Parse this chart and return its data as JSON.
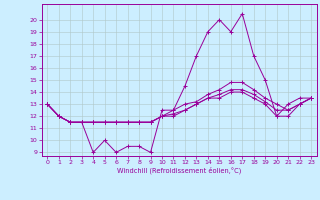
{
  "x": [
    0,
    1,
    2,
    3,
    4,
    5,
    6,
    7,
    8,
    9,
    10,
    11,
    12,
    13,
    14,
    15,
    16,
    17,
    18,
    19,
    20,
    21,
    22,
    23
  ],
  "line1": [
    13,
    12,
    11.5,
    11.5,
    9,
    10,
    9,
    9.5,
    9.5,
    9,
    12.5,
    12.5,
    14.5,
    17,
    19,
    20,
    19,
    20.5,
    17,
    15,
    12,
    13,
    13.5,
    13.5
  ],
  "line2": [
    13,
    12,
    11.5,
    11.5,
    11.5,
    11.5,
    11.5,
    11.5,
    11.5,
    11.5,
    12,
    12,
    12.5,
    13,
    13.5,
    13.5,
    14,
    14,
    13.5,
    13,
    12,
    12,
    13,
    13.5
  ],
  "line3": [
    13,
    12,
    11.5,
    11.5,
    11.5,
    11.5,
    11.5,
    11.5,
    11.5,
    11.5,
    12,
    12.2,
    12.5,
    13,
    13.5,
    13.8,
    14.2,
    14.2,
    13.8,
    13.2,
    12.5,
    12.5,
    13,
    13.5
  ],
  "line4": [
    13,
    12,
    11.5,
    11.5,
    11.5,
    11.5,
    11.5,
    11.5,
    11.5,
    11.5,
    12,
    12.5,
    13,
    13.2,
    13.8,
    14.2,
    14.8,
    14.8,
    14.2,
    13.5,
    13,
    12.5,
    13,
    13.5
  ],
  "color": "#990099",
  "bg_color": "#cceeff",
  "grid_color": "#b0c8c8",
  "ylim_min": 9,
  "ylim_max": 21,
  "xlim_min": 0,
  "xlim_max": 23,
  "yticks": [
    9,
    10,
    11,
    12,
    13,
    14,
    15,
    16,
    17,
    18,
    19,
    20
  ],
  "xticks": [
    0,
    1,
    2,
    3,
    4,
    5,
    6,
    7,
    8,
    9,
    10,
    11,
    12,
    13,
    14,
    15,
    16,
    17,
    18,
    19,
    20,
    21,
    22,
    23
  ],
  "xlabel": "Windchill (Refroidissement éolien,°C)",
  "lw": 0.7,
  "ms": 2.5
}
